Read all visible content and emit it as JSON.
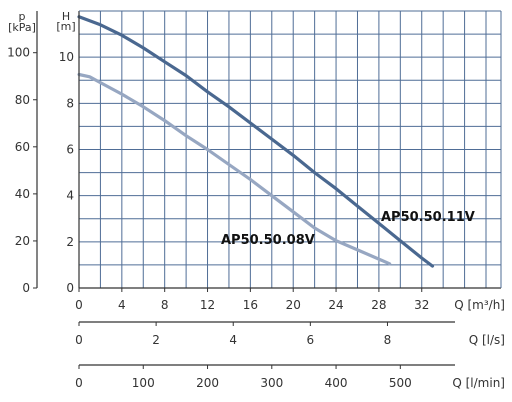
{
  "chart_data": {
    "type": "line",
    "x_axis": {
      "label": "Q [m³/h]",
      "ticks": [
        "0",
        "4",
        "8",
        "12",
        "16",
        "20",
        "24",
        "28",
        "32"
      ],
      "range": [
        0,
        39.4
      ]
    },
    "y_axis_head": {
      "label": "H",
      "unit": "[m]",
      "ticks": [
        "0",
        "2",
        "4",
        "6",
        "8",
        "10"
      ],
      "range": [
        0,
        12
      ]
    },
    "y_axis_pressure": {
      "label": "p",
      "unit": "[kPa]",
      "ticks": [
        "0",
        "20",
        "40",
        "60",
        "80",
        "100"
      ]
    },
    "secondary_axes": [
      {
        "label": "Q [l/s]",
        "ticks": [
          "0",
          "2",
          "4",
          "6",
          "8"
        ]
      },
      {
        "label": "Q [l/min]",
        "ticks": [
          "0",
          "100",
          "200",
          "300",
          "400",
          "500"
        ]
      }
    ],
    "grid": true,
    "series": [
      {
        "name": "AP50.50.11V",
        "color": "#4a6890",
        "x": [
          0,
          2,
          4,
          6,
          8,
          10,
          12,
          14,
          16,
          18,
          20,
          22,
          24,
          26,
          28,
          30,
          32,
          33
        ],
        "y": [
          11.75,
          11.4,
          10.95,
          10.4,
          9.8,
          9.2,
          8.5,
          7.85,
          7.15,
          6.45,
          5.75,
          5.0,
          4.3,
          3.55,
          2.8,
          2.05,
          1.3,
          0.95
        ]
      },
      {
        "name": "AP50.50.08V",
        "color": "#97a7c2",
        "x": [
          0,
          1,
          2,
          4,
          6,
          8,
          10,
          12,
          14,
          16,
          18,
          20,
          22,
          24,
          26,
          28,
          29
        ],
        "y": [
          9.25,
          9.15,
          8.9,
          8.4,
          7.85,
          7.25,
          6.6,
          6.0,
          5.35,
          4.7,
          4.0,
          3.3,
          2.6,
          2.05,
          1.65,
          1.25,
          1.05
        ]
      }
    ]
  }
}
